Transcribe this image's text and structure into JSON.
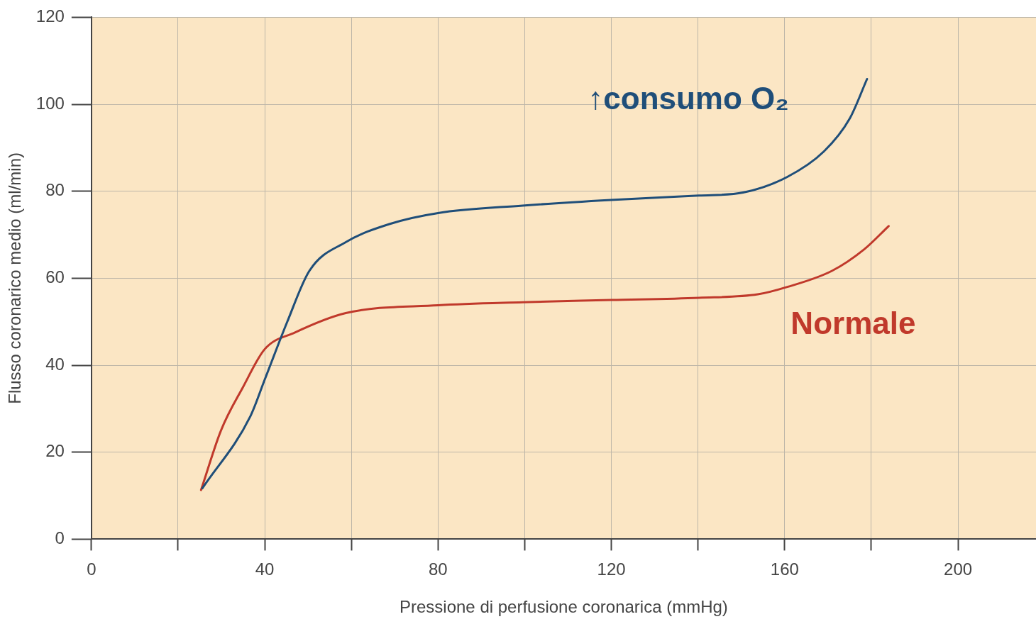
{
  "chart_data": {
    "type": "line",
    "xlabel": "Pressione di perfusione coronarica (mmHg)",
    "ylabel": "Flusso coronarico medio (ml/min)",
    "xlim": [
      0,
      218
    ],
    "xticks": [
      0,
      {
        "value": 20,
        "label": null
      },
      40,
      {
        "value": 60,
        "label": null
      },
      80,
      {
        "value": 100,
        "label": null
      },
      120,
      {
        "value": 140,
        "label": null
      },
      160,
      {
        "value": 180,
        "label": null
      },
      200
    ],
    "ylim": [
      0,
      120
    ],
    "yticks": [
      0,
      20,
      40,
      60,
      80,
      100,
      120
    ],
    "grid": true,
    "legend": false,
    "marker": "none",
    "line_style": "solid",
    "series": [
      {
        "name": "↑consumo O₂",
        "color": "#1f4e79",
        "x": [
          25.6,
          36.7,
          40,
          45.2,
          50.3,
          58.7,
          68.9,
          80,
          99.5,
          119.9,
          140.2,
          150.4,
          160.6,
          169.1,
          175,
          179
        ],
        "values": [
          11.7,
          28.3,
          36.7,
          50,
          61.7,
          68.3,
          72.5,
          75,
          76.7,
          78,
          79,
          79.7,
          83.3,
          89.2,
          96.7,
          105.8
        ]
      },
      {
        "name": "Normale",
        "color": "#c0392b",
        "x": [
          25.3,
          29.9,
          35,
          40,
          46.9,
          58.7,
          80,
          99.5,
          120,
          140.2,
          153.8,
          160.6,
          170.9,
          178.4,
          184
        ],
        "values": [
          11.3,
          25,
          35,
          43.7,
          47.5,
          52,
          53.8,
          54.5,
          55,
          55.5,
          56.3,
          58,
          61.7,
          66.7,
          72
        ]
      }
    ]
  }
}
